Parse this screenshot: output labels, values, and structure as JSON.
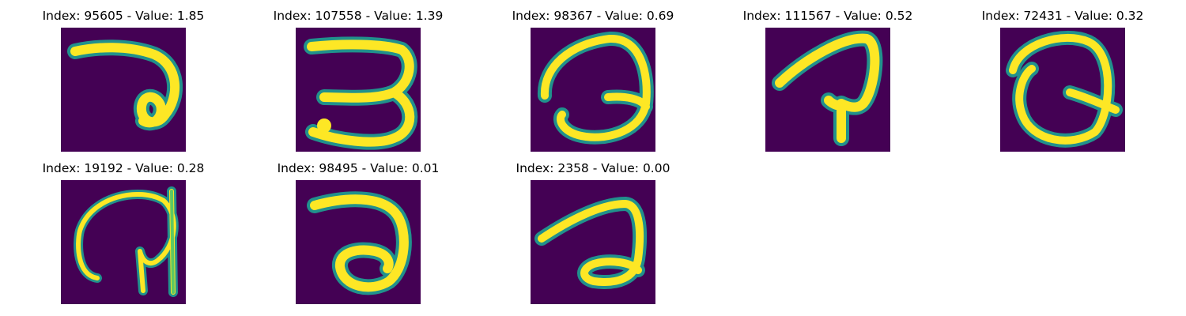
{
  "panels": [
    {
      "title": "Index: 95605 - Value: 1.85"
    },
    {
      "title": "Index: 107558 - Value: 1.39"
    },
    {
      "title": "Index: 98367 - Value: 0.69"
    },
    {
      "title": "Index: 111567 - Value: 0.52"
    },
    {
      "title": "Index: 72431 - Value: 0.32"
    },
    {
      "title": "Index: 19192 - Value: 0.28"
    },
    {
      "title": "Index: 98495 - Value: 0.01"
    },
    {
      "title": "Index: 2358 - Value: 0.00"
    }
  ],
  "colors": {
    "background": "#440154",
    "stroke": "#fde725",
    "edge": "#21918c",
    "mid": "#5ec962"
  }
}
